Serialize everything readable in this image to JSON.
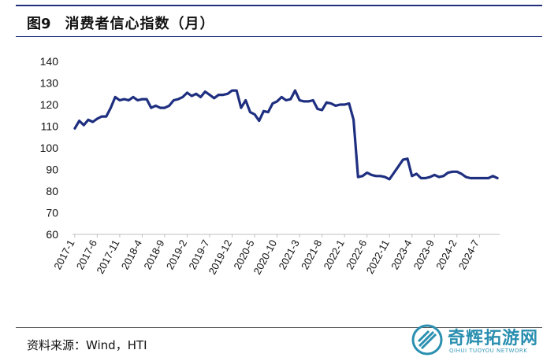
{
  "figure": {
    "label": "图9",
    "title": "消费者信心指数（月）",
    "source": "资料来源：Wind，HTI"
  },
  "watermark": {
    "brand": "奇辉拓游网",
    "subtitle": "QIHUI TUOYOU NETWORK"
  },
  "colors": {
    "line": "#1f2f80",
    "rule": "#1f2f7a",
    "watermark": "#2a8fb0"
  },
  "chart_data": {
    "type": "line",
    "title": "",
    "xlabel": "",
    "ylabel": "",
    "ylim": [
      60,
      140
    ],
    "yticks": [
      60,
      70,
      80,
      90,
      100,
      110,
      120,
      130,
      140
    ],
    "grid": false,
    "xtick_labels": [
      "2017-1",
      "2017-6",
      "2017-11",
      "2018-4",
      "2018-9",
      "2019-2",
      "2019-7",
      "2019-12",
      "2020-5",
      "2020-10",
      "2021-3",
      "2021-8",
      "2022-1",
      "2022-6",
      "2022-11",
      "2023-4",
      "2023-9",
      "2024-2",
      "2024-7"
    ],
    "x": [
      "2017-1",
      "2017-2",
      "2017-3",
      "2017-4",
      "2017-5",
      "2017-6",
      "2017-7",
      "2017-8",
      "2017-9",
      "2017-10",
      "2017-11",
      "2017-12",
      "2018-1",
      "2018-2",
      "2018-3",
      "2018-4",
      "2018-5",
      "2018-6",
      "2018-7",
      "2018-8",
      "2018-9",
      "2018-10",
      "2018-11",
      "2018-12",
      "2019-1",
      "2019-2",
      "2019-3",
      "2019-4",
      "2019-5",
      "2019-6",
      "2019-7",
      "2019-8",
      "2019-9",
      "2019-10",
      "2019-11",
      "2019-12",
      "2020-1",
      "2020-2",
      "2020-3",
      "2020-4",
      "2020-5",
      "2020-6",
      "2020-7",
      "2020-8",
      "2020-9",
      "2020-10",
      "2020-11",
      "2020-12",
      "2021-1",
      "2021-2",
      "2021-3",
      "2021-4",
      "2021-5",
      "2021-6",
      "2021-7",
      "2021-8",
      "2021-9",
      "2021-10",
      "2021-11",
      "2021-12",
      "2022-1",
      "2022-2",
      "2022-3",
      "2022-4",
      "2022-5",
      "2022-6",
      "2022-7",
      "2022-8",
      "2022-9",
      "2022-10",
      "2022-11",
      "2022-12",
      "2023-1",
      "2023-2",
      "2023-3",
      "2023-4",
      "2023-5",
      "2023-6",
      "2023-7",
      "2023-8",
      "2023-9",
      "2023-10",
      "2023-11",
      "2023-12",
      "2024-1",
      "2024-2",
      "2024-3",
      "2024-4",
      "2024-5",
      "2024-6",
      "2024-7",
      "2024-8",
      "2024-9",
      "2024-10",
      "2024-11"
    ],
    "series": [
      {
        "name": "",
        "values": [
          109.0,
          112.5,
          110.5,
          113.0,
          112.0,
          113.5,
          114.5,
          114.5,
          118.5,
          123.5,
          122.0,
          122.5,
          122.0,
          123.5,
          122.0,
          122.5,
          122.5,
          118.5,
          119.5,
          118.5,
          118.5,
          119.5,
          122.0,
          122.5,
          123.5,
          125.5,
          124.0,
          125.0,
          123.5,
          126.0,
          124.5,
          123.0,
          124.5,
          124.5,
          125.0,
          126.5,
          126.5,
          118.5,
          122.0,
          116.5,
          115.5,
          112.5,
          117.0,
          116.5,
          120.5,
          121.5,
          123.5,
          122.0,
          122.5,
          126.5,
          122.0,
          121.5,
          121.5,
          122.0,
          118.0,
          117.5,
          121.0,
          120.5,
          119.5,
          120.0,
          120.0,
          120.5,
          113.0,
          86.5,
          87.0,
          88.5,
          87.5,
          87.0,
          87.0,
          86.5,
          85.5,
          88.5,
          91.5,
          94.5,
          95.0,
          87.0,
          88.0,
          86.0,
          86.0,
          86.5,
          87.5,
          86.5,
          87.0,
          88.5,
          89.0,
          89.0,
          88.0,
          86.5,
          86.0,
          86.0,
          86.0,
          86.0,
          86.0,
          87.0,
          86.0
        ]
      }
    ]
  }
}
